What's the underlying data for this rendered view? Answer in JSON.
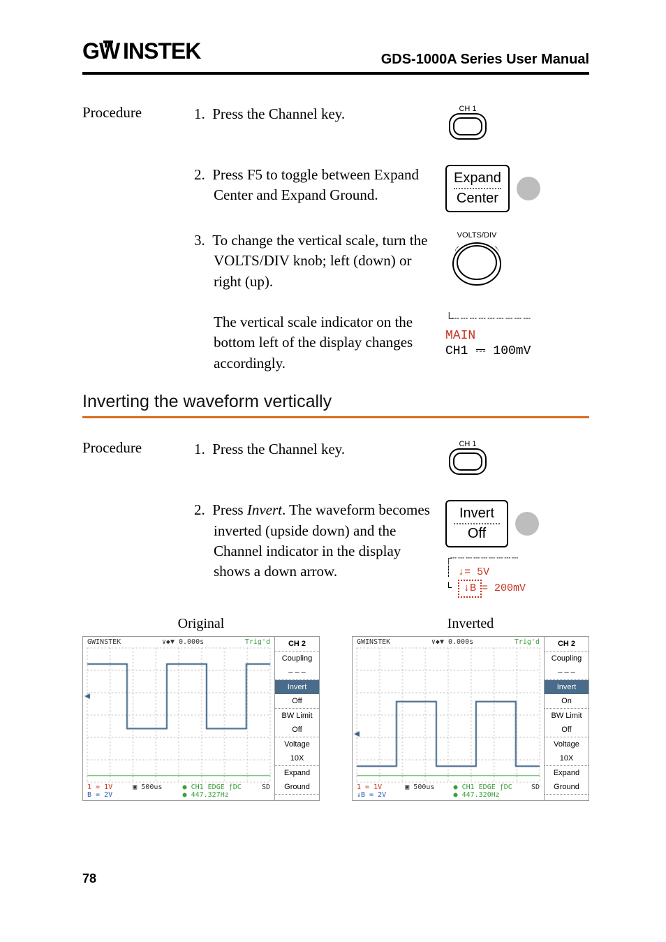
{
  "header": {
    "brand": "GWINSTEK",
    "title": "GDS-1000A Series User Manual"
  },
  "section1": {
    "label": "Procedure",
    "steps": [
      {
        "n": "1.",
        "text": "Press the Channel key."
      },
      {
        "n": "2.",
        "text": "Press F5 to toggle between Expand Center and Expand Ground."
      },
      {
        "n": "3.",
        "text": "To change the vertical scale, turn the VOLTS/DIV knob; left (down) or right (up)."
      },
      {
        "n": "",
        "text": "The vertical scale indicator on the bottom left of the display changes accordingly."
      }
    ],
    "icons": {
      "ch_label": "CH 1",
      "softkey_top": "Expand",
      "softkey_bottom": "Center",
      "knob_label": "VOLTS/DIV",
      "lcd_main": "MAIN",
      "lcd_ch": "CH1",
      "lcd_sep": "⎓",
      "lcd_val": "100mV"
    }
  },
  "section_heading": "Inverting the waveform vertically",
  "section2": {
    "label": "Procedure",
    "steps": [
      {
        "n": "1.",
        "text": "Press the Channel key."
      },
      {
        "n": "2.",
        "pre": "Press ",
        "em": "Invert",
        "post": ". The waveform becomes inverted (upside down) and the Channel indicator in the display shows a down arrow."
      }
    ],
    "icons": {
      "ch_label": "CH 1",
      "softkey_top": "Invert",
      "softkey_bottom": "Off",
      "lcd_l1a": "↓",
      "lcd_l1b": "= 5V",
      "lcd_l2a": "↓B",
      "lcd_l2b": "= 200mV"
    }
  },
  "waveforms": {
    "left": {
      "caption": "Original",
      "top_left": "GWINSTEK",
      "top_mid": "∨◆▼ 0.000s",
      "top_trig": "Trig'd",
      "menu_title": "CH 2",
      "menu": [
        "Coupling",
        "– – –",
        "Invert",
        "Off",
        "BW Limit",
        "Off",
        "Voltage",
        "10X",
        "Expand",
        "Ground"
      ],
      "hi_index": 2,
      "bot_ch1": "1 = 1V",
      "bot_chB": "B = 2V",
      "bot_time": "▣ 500us",
      "bot_r1": "● CH1   EDGE   ƒDC",
      "bot_r2": "● 447.327Hz",
      "sd": "SD",
      "plot": {
        "type": "square_top",
        "bg": "#ffffff",
        "grid": "#b8b8b8",
        "trace": "#3a5f82",
        "baseline": "#3aa03a",
        "amp": 0.48,
        "cycles": 2.3,
        "low_level": 0.95
      }
    },
    "right": {
      "caption": "Inverted",
      "top_left": "GWINSTEK",
      "top_mid": "∨◆▼ 0.000s",
      "top_trig": "Trig'd",
      "menu_title": "CH 2",
      "menu": [
        "Coupling",
        "– – –",
        "Invert",
        "On",
        "BW Limit",
        "Off",
        "Voltage",
        "10X",
        "Expand",
        "Ground"
      ],
      "hi_index": 2,
      "bot_ch1": "1 = 1V",
      "bot_chB": "↓B = 2V",
      "bot_time": "▣ 500us",
      "bot_r1": "● CH1   EDGE   ƒDC",
      "bot_r2": "● 447.320Hz",
      "sd": "SD",
      "plot": {
        "type": "square_bottom",
        "bg": "#ffffff",
        "grid": "#b8b8b8",
        "trace": "#3a5f82",
        "baseline": "#3aa03a",
        "amp": 0.48,
        "cycles": 2.3,
        "low_level": 0.95
      }
    }
  },
  "page_number": "78",
  "colors": {
    "orange_rule": "#d96c1e",
    "lcd_red": "#c8321e"
  }
}
